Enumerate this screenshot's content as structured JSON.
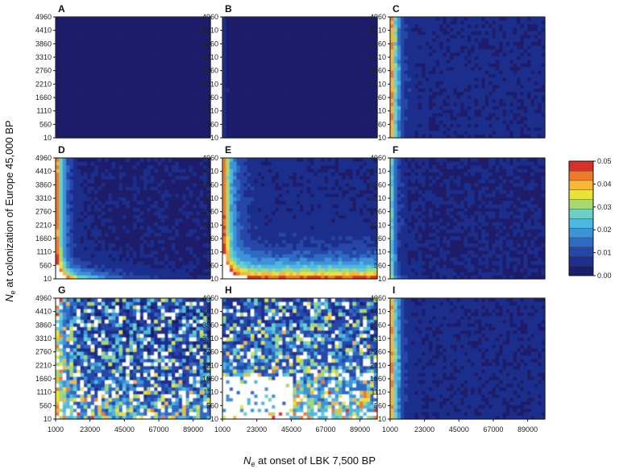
{
  "chart_data": {
    "type": "heatmap",
    "panel_labels": [
      "A",
      "B",
      "C",
      "D",
      "E",
      "F",
      "G",
      "H",
      "I"
    ],
    "x_ticks": [
      "1000",
      "23000",
      "45000",
      "67000",
      "89000"
    ],
    "y_ticks": [
      "10",
      "560",
      "1110",
      "1660",
      "2210",
      "2760",
      "3310",
      "3860",
      "4410",
      "4960"
    ],
    "xlim": [
      1000,
      100000
    ],
    "ylim": [
      10,
      4960
    ],
    "xlabel_prefix": "N",
    "xlabel_sub": "e",
    "xlabel_rest": " at onset of LBK 7,500 BP",
    "ylabel_prefix": "N",
    "ylabel_sub": "e",
    "ylabel_rest": " at colonization of Europe 45,000 BP",
    "colorbar": {
      "ticks": [
        "0.05",
        "0.04",
        "0.03",
        "0.02",
        "0.01",
        "0.00"
      ],
      "range": [
        0.0,
        0.05
      ],
      "colors": [
        "#1b1f6b",
        "#1e2f8c",
        "#2547a8",
        "#2f6bc4",
        "#3d92d8",
        "#4fb8e0",
        "#6cd0c8",
        "#a8d870",
        "#e6e43a",
        "#f6b73a",
        "#ef7a2a",
        "#d9302a"
      ]
    },
    "panels": [
      {
        "label": "A",
        "pattern": "flat",
        "max_value": 0.005
      },
      {
        "label": "B",
        "pattern": "left-edge-weak",
        "max_value": 0.008
      },
      {
        "label": "C",
        "pattern": "left-edge",
        "max_value": 0.05
      },
      {
        "label": "D",
        "pattern": "corner-bottom-left",
        "max_value": 0.05
      },
      {
        "label": "E",
        "pattern": "corner-hyperbolic",
        "max_value": 0.05
      },
      {
        "label": "F",
        "pattern": "left-edge-medium",
        "max_value": 0.03
      },
      {
        "label": "G",
        "pattern": "noisy-dense",
        "max_value": 0.05
      },
      {
        "label": "H",
        "pattern": "noisy-sparse",
        "max_value": 0.05
      },
      {
        "label": "I",
        "pattern": "left-edge",
        "max_value": 0.05
      }
    ]
  }
}
